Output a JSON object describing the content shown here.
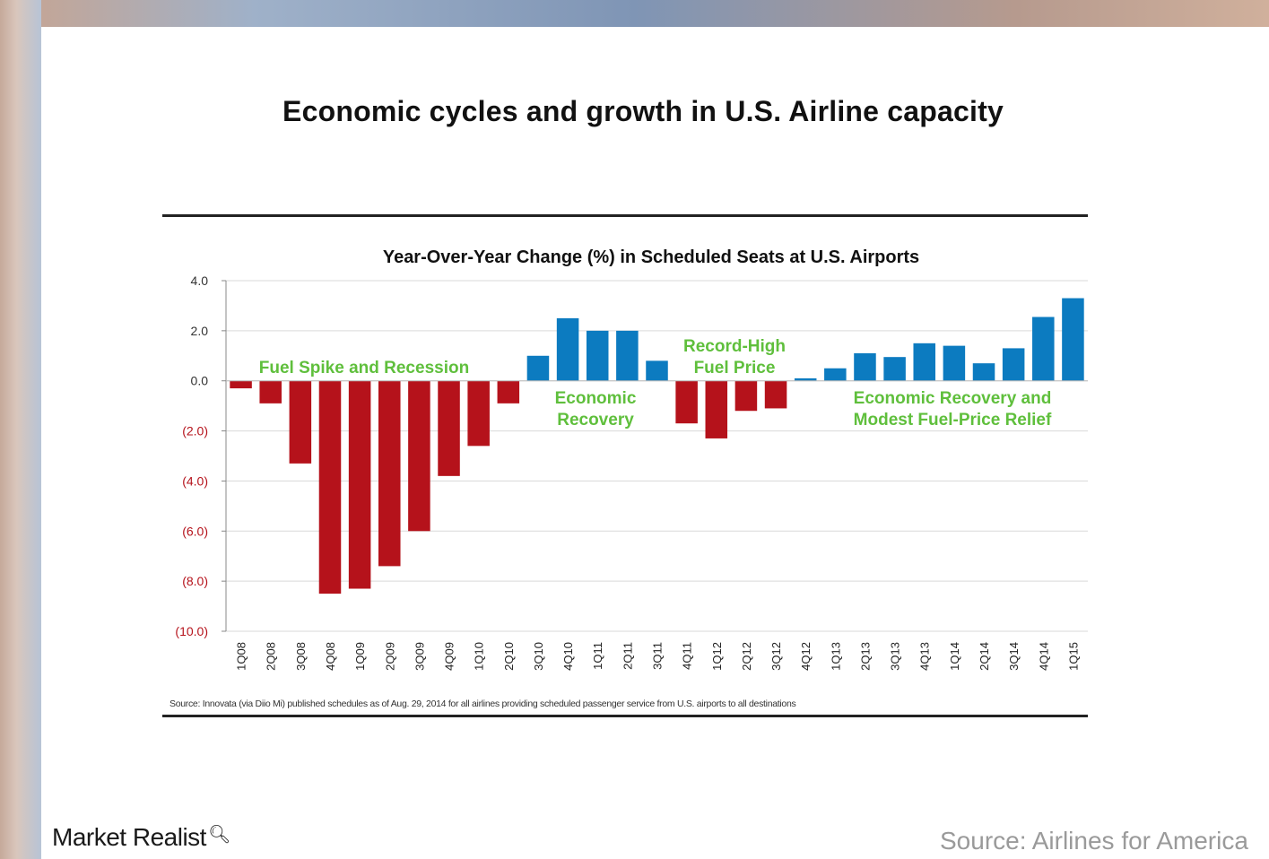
{
  "page_title": "Economic cycles and growth in U.S. Airline capacity",
  "logo_text": "Market Realist",
  "credit_text": "Source: Airlines for America",
  "colors": {
    "negative": "#b5121b",
    "positive": "#0c7bc0",
    "annotation": "#5fbf3c"
  },
  "chart_data": {
    "type": "bar",
    "title": "Year-Over-Year Change (%) in Scheduled Seats at U.S. Airports",
    "categories": [
      "1Q08",
      "2Q08",
      "3Q08",
      "4Q08",
      "1Q09",
      "2Q09",
      "3Q09",
      "4Q09",
      "1Q10",
      "2Q10",
      "3Q10",
      "4Q10",
      "1Q11",
      "2Q11",
      "3Q11",
      "4Q11",
      "1Q12",
      "2Q12",
      "3Q12",
      "4Q12",
      "1Q13",
      "2Q13",
      "3Q13",
      "4Q13",
      "1Q14",
      "2Q14",
      "3Q14",
      "4Q14",
      "1Q15"
    ],
    "values": [
      -0.3,
      -0.9,
      -3.3,
      -8.5,
      -8.3,
      -7.4,
      -6.0,
      -3.8,
      -2.6,
      -0.9,
      1.0,
      2.5,
      2.0,
      2.0,
      0.8,
      -1.7,
      -2.3,
      -1.2,
      -1.1,
      0.1,
      0.5,
      1.1,
      0.95,
      1.5,
      1.4,
      0.7,
      1.3,
      2.55,
      3.3
    ],
    "ylim": [
      -10,
      4
    ],
    "yticks": [
      4,
      2,
      0,
      -2,
      -4,
      -6,
      -8,
      -10
    ],
    "ytick_labels": [
      "4.0",
      "2.0",
      "0.0",
      "(2.0)",
      "(4.0)",
      "(6.0)",
      "(8.0)",
      "(10.0)"
    ],
    "grid": true,
    "annotations": [
      {
        "lines": [
          "Fuel Spike and Recession"
        ]
      },
      {
        "lines": [
          "Economic",
          "Recovery"
        ]
      },
      {
        "lines": [
          "Record-High",
          "Fuel Price"
        ]
      },
      {
        "lines": [
          "Economic Recovery and",
          "Modest Fuel-Price Relief"
        ]
      }
    ],
    "source": "Source: Innovata (via Diio Mi) published schedules as of Aug. 29, 2014 for all airlines providing scheduled passenger service from U.S. airports to all destinations"
  }
}
